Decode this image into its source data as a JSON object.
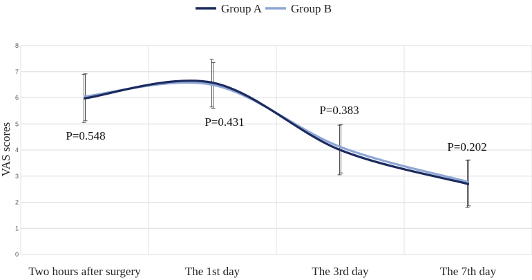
{
  "chart_data": {
    "type": "line",
    "title": "",
    "xlabel": "",
    "ylabel": "VAS scores",
    "ylim": [
      0,
      8
    ],
    "yticks": [
      "0",
      "1",
      "2",
      "3",
      "4",
      "5",
      "6",
      "7",
      "8"
    ],
    "categories": [
      "Two hours after surgery",
      "The 1st day",
      "The 3rd day",
      "The 7th day"
    ],
    "grid": true,
    "legend_position": "top-center",
    "series": [
      {
        "name": "Group A",
        "color": "#1b2a5e",
        "values": [
          5.98,
          6.58,
          4.0,
          2.7
        ],
        "error_low": [
          5.05,
          5.65,
          3.05,
          1.8
        ],
        "error_high": [
          6.9,
          7.48,
          4.95,
          3.6
        ]
      },
      {
        "name": "Group B",
        "color": "#8ea6d6",
        "values": [
          6.05,
          6.5,
          4.12,
          2.78
        ],
        "error_low": [
          5.12,
          5.6,
          3.12,
          1.86
        ],
        "error_high": [
          6.92,
          7.35,
          4.98,
          3.62
        ]
      }
    ],
    "annotations": [
      "P=0.548",
      "P=0.431",
      "P=0.383",
      "P=0.202"
    ]
  }
}
